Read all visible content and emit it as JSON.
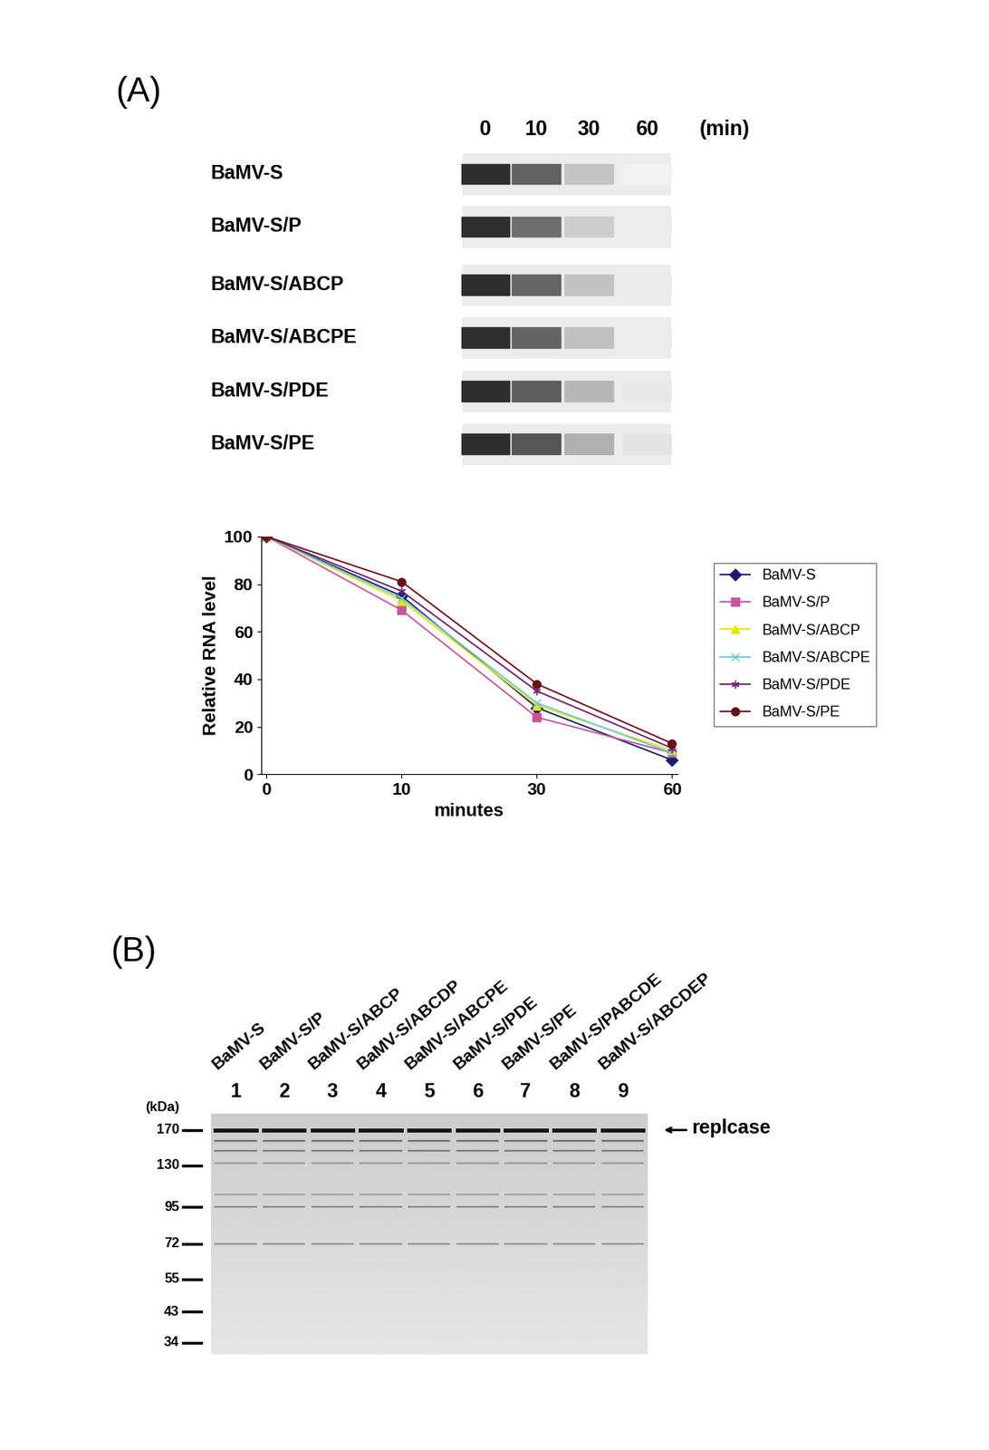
{
  "panel_a": {
    "label": "(A)",
    "time_unit": "(min)"
  },
  "chart_data": {
    "type": "line",
    "x_label": "minutes",
    "y_label": "Relative RNA level",
    "categories": [
      "0",
      "10",
      "30",
      "60"
    ],
    "ylim": [
      0,
      100
    ],
    "yticks": [
      0,
      20,
      40,
      60,
      80,
      100
    ],
    "legend": "right",
    "series": [
      {
        "name": "BaMV-S",
        "color": "#1c1c6b",
        "marker": "diamond",
        "values": [
          100,
          75,
          28,
          6
        ]
      },
      {
        "name": "BaMV-S/P",
        "color": "#c8559a",
        "marker": "square",
        "values": [
          100,
          69,
          24,
          9
        ]
      },
      {
        "name": "BaMV-S/ABCP",
        "color": "#e6e600",
        "marker": "triangle",
        "values": [
          100,
          73,
          29,
          10
        ]
      },
      {
        "name": "BaMV-S/ABCPE",
        "color": "#6cc8dc",
        "marker": "x",
        "values": [
          100,
          74,
          30,
          9
        ]
      },
      {
        "name": "BaMV-S/PDE",
        "color": "#6b2070",
        "marker": "star",
        "values": [
          100,
          77,
          35,
          11
        ]
      },
      {
        "name": "BaMV-S/PE",
        "color": "#6b0f1a",
        "marker": "circle",
        "values": [
          100,
          81,
          38,
          13
        ]
      }
    ]
  },
  "panel_b": {
    "label": "(B)",
    "lanes": [
      "BaMV-S",
      "BaMV-S/P",
      "BaMV-S/ABCP",
      "BaMV-S/ABCDP",
      "BaMV-S/ABCPE",
      "BaMV-S/PDE",
      "BaMV-S/PE",
      "BaMV-S/PABCDE",
      "BaMV-S/ABCDEP"
    ],
    "lane_numbers": [
      1,
      2,
      3,
      4,
      5,
      6,
      7,
      8,
      9
    ],
    "unit": "(kDa)",
    "markers": [
      170,
      130,
      95,
      72,
      55,
      43,
      34
    ],
    "arrow_label": "replcase"
  }
}
